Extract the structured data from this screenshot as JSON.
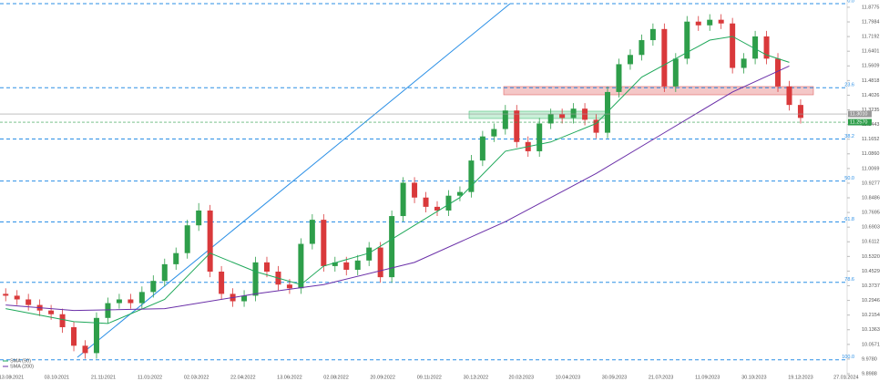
{
  "chart_data": {
    "type": "candlestick",
    "xlim": [
      -0.5,
      76.5
    ],
    "ylim": [
      9.889,
      11.897
    ],
    "xticks": [
      {
        "value": 0.5,
        "label": "13.08.2021"
      },
      {
        "value": 4.5,
        "label": "03.10.2021"
      },
      {
        "value": 8.6,
        "label": "21.11.2021"
      },
      {
        "value": 12.7,
        "label": "11.01.2022"
      },
      {
        "value": 16.8,
        "label": "02.03.2022"
      },
      {
        "value": 20.9,
        "label": "22.04.2022"
      },
      {
        "value": 25,
        "label": "13.06.2022"
      },
      {
        "value": 29.1,
        "label": "02.08.2022"
      },
      {
        "value": 33.2,
        "label": "20.09.2022"
      },
      {
        "value": 37.3,
        "label": "09.11.2022"
      },
      {
        "value": 41.4,
        "label": "30.12.2022"
      },
      {
        "value": 45.4,
        "label": "20.02.2023"
      },
      {
        "value": 49.5,
        "label": "10.04.2023"
      },
      {
        "value": 53.6,
        "label": "30.05.2023"
      },
      {
        "value": 57.7,
        "label": "21.07.2023"
      },
      {
        "value": 61.8,
        "label": "11.09.2023"
      },
      {
        "value": 65.9,
        "label": "30.10.2023"
      },
      {
        "value": 70,
        "label": "19.12.2023"
      },
      {
        "value": 74,
        "label": "27.01.2024"
      }
    ],
    "yticks": [
      9.8988,
      {
        "value": 9.978,
        "label": "9.9780"
      },
      10.0571,
      10.1363,
      10.2154,
      10.2946,
      10.3737,
      10.4529,
      {
        "value": 10.532,
        "label": "10.5320"
      },
      10.6112,
      10.6903,
      10.7695,
      10.8486,
      10.9277,
      11.0069,
      {
        "value": 11.086,
        "label": "11.0860"
      },
      11.1652,
      11.2443,
      11.3235,
      11.4026,
      11.4818,
      11.5609,
      11.6401,
      11.7192,
      11.7984,
      11.8775
    ],
    "up_color": "#2e9e4a",
    "down_color": "#d9393b",
    "open": [
      10.33,
      10.32,
      10.3,
      10.27,
      10.24,
      10.22,
      10.15,
      10.05,
      10.01,
      10.2,
      10.28,
      10.3,
      10.28,
      10.34,
      10.4,
      10.49,
      10.55,
      10.7,
      10.78,
      10.45,
      10.33,
      10.29,
      10.32,
      10.5,
      10.45,
      10.38,
      10.36,
      10.6,
      10.73,
      10.48,
      10.5,
      10.46,
      10.51,
      10.58,
      10.42,
      10.75,
      10.93,
      10.85,
      10.8,
      10.78,
      10.86,
      10.88,
      11.05,
      11.18,
      11.22,
      11.32,
      11.15,
      11.1,
      11.25,
      11.3,
      11.28,
      11.33,
      11.27,
      11.2,
      11.42,
      11.57,
      11.62,
      11.7,
      11.76,
      11.45,
      11.6,
      11.8,
      11.78,
      11.81,
      11.79,
      11.55,
      11.6,
      11.72,
      11.6,
      11.45,
      11.35
    ],
    "high": [
      10.36,
      10.35,
      10.33,
      10.3,
      10.27,
      10.25,
      10.18,
      10.08,
      10.23,
      10.31,
      10.33,
      10.33,
      10.37,
      10.43,
      10.52,
      10.58,
      10.73,
      10.82,
      10.81,
      10.48,
      10.36,
      10.35,
      10.53,
      10.53,
      10.48,
      10.41,
      10.63,
      10.76,
      10.76,
      10.53,
      10.53,
      10.54,
      10.61,
      10.61,
      10.78,
      10.96,
      10.96,
      10.88,
      10.83,
      10.89,
      10.91,
      11.08,
      11.21,
      11.25,
      11.35,
      11.35,
      11.18,
      11.28,
      11.33,
      11.33,
      11.36,
      11.36,
      11.3,
      11.45,
      11.6,
      11.65,
      11.73,
      11.79,
      11.79,
      11.63,
      11.83,
      11.83,
      11.84,
      11.84,
      11.82,
      11.63,
      11.75,
      11.75,
      11.63,
      11.48,
      11.38
    ],
    "low": [
      10.29,
      10.27,
      10.24,
      10.21,
      10.19,
      10.12,
      10.02,
      9.98,
      9.98,
      10.17,
      10.25,
      10.25,
      10.25,
      10.31,
      10.37,
      10.46,
      10.52,
      10.67,
      10.42,
      10.3,
      10.26,
      10.26,
      10.29,
      10.42,
      10.35,
      10.33,
      10.33,
      10.57,
      10.45,
      10.45,
      10.43,
      10.43,
      10.48,
      10.39,
      10.39,
      10.72,
      10.82,
      10.77,
      10.75,
      10.75,
      10.83,
      10.85,
      11.02,
      11.15,
      11.19,
      11.12,
      11.07,
      11.07,
      11.22,
      11.25,
      11.25,
      11.24,
      11.17,
      11.17,
      11.39,
      11.54,
      11.59,
      11.67,
      11.42,
      11.42,
      11.57,
      11.75,
      11.75,
      11.76,
      11.52,
      11.52,
      11.57,
      11.57,
      11.42,
      11.32,
      11.25
    ],
    "close": [
      10.32,
      10.3,
      10.27,
      10.24,
      10.22,
      10.15,
      10.05,
      10.01,
      10.2,
      10.28,
      10.3,
      10.28,
      10.34,
      10.4,
      10.49,
      10.55,
      10.7,
      10.78,
      10.45,
      10.33,
      10.29,
      10.32,
      10.5,
      10.45,
      10.38,
      10.36,
      10.6,
      10.73,
      10.48,
      10.5,
      10.46,
      10.51,
      10.58,
      10.42,
      10.75,
      10.93,
      10.85,
      10.8,
      10.78,
      10.86,
      10.88,
      11.05,
      11.18,
      11.22,
      11.32,
      11.15,
      11.1,
      11.25,
      11.3,
      11.28,
      11.33,
      11.27,
      11.2,
      11.42,
      11.57,
      11.62,
      11.7,
      11.76,
      11.45,
      11.6,
      11.8,
      11.78,
      11.81,
      11.79,
      11.55,
      11.6,
      11.72,
      11.6,
      11.45,
      11.35,
      11.28
    ],
    "series": [
      {
        "name": "SMA (50)",
        "color": "#1fa85a",
        "x": [
          0,
          6,
          9,
          14,
          18,
          22,
          26,
          28,
          32,
          36,
          40,
          44,
          48,
          52,
          56,
          59,
          62,
          64,
          67,
          69
        ],
        "values": [
          10.25,
          10.18,
          10.17,
          10.3,
          10.55,
          10.45,
          10.38,
          10.48,
          10.55,
          10.7,
          10.85,
          11.1,
          11.15,
          11.25,
          11.5,
          11.6,
          11.7,
          11.72,
          11.62,
          11.58
        ]
      },
      {
        "name": "SMA (200)",
        "color": "#6a2fa8",
        "x": [
          0,
          6,
          14,
          22,
          28,
          36,
          44,
          52,
          58,
          64,
          69
        ],
        "values": [
          10.27,
          10.24,
          10.25,
          10.33,
          10.38,
          10.5,
          10.72,
          10.98,
          11.2,
          11.42,
          11.56
        ]
      }
    ],
    "fib_levels": [
      {
        "value": 11.897,
        "label": "0.0"
      },
      {
        "value": 11.443,
        "label": "23.6"
      },
      {
        "value": 11.166,
        "label": "38.2"
      },
      {
        "value": 10.939,
        "label": "50.0"
      },
      {
        "value": 10.718,
        "label": "61.8"
      },
      {
        "value": 10.392,
        "label": "78.6"
      },
      {
        "value": 9.974,
        "label": "100.0"
      }
    ],
    "last_price": {
      "value": 11.301,
      "label": "11.3010"
    },
    "marker_price": {
      "value": 11.257,
      "label": "11.2570"
    }
  }
}
